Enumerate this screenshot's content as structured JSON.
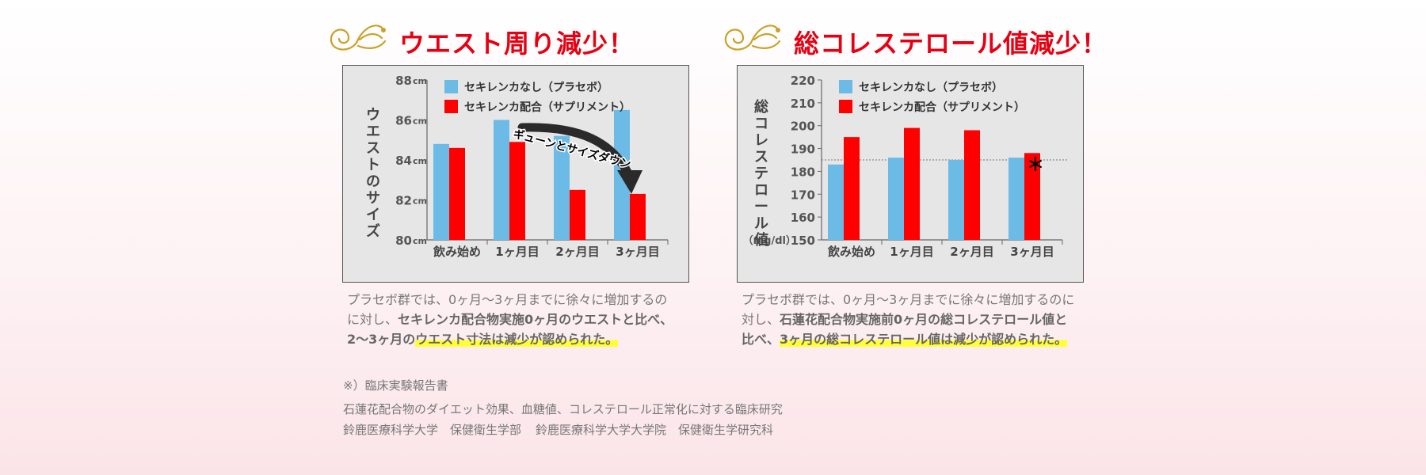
{
  "left": {
    "heading": "ウエスト周り減少！",
    "caption": {
      "line1": "プラセボ群では、0ヶ月〜3ヶ月までに徐々に増加するの",
      "line2a": "に対し、",
      "line2b": "セキレンカ配合物実施0ヶ月のウエストと比べ、",
      "line3a": "2〜3ヶ月の",
      "line3b": "ウエスト寸法は減少が認められた。"
    }
  },
  "right": {
    "heading": "総コレステロール値減少！",
    "caption": {
      "line1": "プラセボ群では、0ヶ月〜3ヶ月までに徐々に増加するのに",
      "line2a": "対し、",
      "line2b": "石蓮花配合物実施前0ヶ月の総コレステロール値と",
      "line3a": "比べ、",
      "line3b": "3ヶ月の総コレステロール値は減少が認められた。"
    }
  },
  "notes": {
    "ref_head": "※）臨床実験報告書",
    "ref_title": "石蓮花配合物のダイエット効果、血糖値、コレステロール正常化に対する臨床研究",
    "affil1": "鈴鹿医療科学大学　保健衛生学部",
    "affil2": "鈴鹿医療科学大学大学院　保健衛生学研究科"
  },
  "colors": {
    "placebo": "#6cbbe6",
    "supplement": "#ff0000",
    "heading": "#e60012",
    "highlight": "#ffff33"
  },
  "chart_data": [
    {
      "type": "bar",
      "ylabel": "ウエストのサイズ",
      "unit": "cm",
      "ylim": [
        80,
        88
      ],
      "yticks": [
        80,
        82,
        84,
        86,
        88
      ],
      "categories": [
        "飲み始め",
        "1ヶ月目",
        "2ヶ月目",
        "3ヶ月目"
      ],
      "series": [
        {
          "name": "セキレンカなし（プラセボ）",
          "color": "#6cbbe6",
          "values": [
            84.8,
            86.0,
            85.2,
            86.5
          ]
        },
        {
          "name": "セキレンカ配合（サプリメント）",
          "color": "#ff0000",
          "values": [
            84.6,
            84.9,
            82.5,
            82.3
          ]
        }
      ],
      "legend": "top-left",
      "annotation": "ギューンとサイズダウン"
    },
    {
      "type": "bar",
      "ylabel": "総コレステロール値",
      "unit_label": "（mg/dl）",
      "ylim": [
        150,
        220
      ],
      "yticks": [
        150,
        160,
        170,
        180,
        190,
        200,
        210,
        220
      ],
      "categories": [
        "飲み始め",
        "1ヶ月目",
        "2ヶ月目",
        "3ヶ月目"
      ],
      "series": [
        {
          "name": "セキレンカなし（プラセボ）",
          "color": "#6cbbe6",
          "values": [
            183,
            186,
            185,
            186
          ]
        },
        {
          "name": "セキレンカ配合（サプリメント）",
          "color": "#ff0000",
          "values": [
            195,
            199,
            198,
            188
          ]
        }
      ],
      "legend": "top-left",
      "reference_line": 185,
      "annotation": "＊"
    }
  ]
}
